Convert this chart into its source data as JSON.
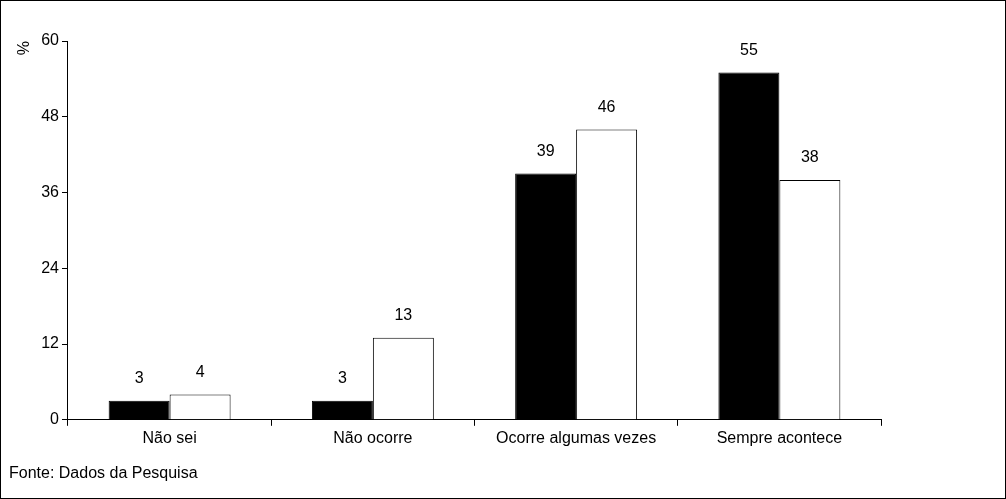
{
  "chart_data": {
    "type": "bar",
    "ylabel": "%",
    "categories": [
      "Não sei",
      "Não ocorre",
      "Ocorre algumas vezes",
      "Sempre acontece"
    ],
    "series": [
      {
        "color": "#000000",
        "values": [
          3,
          3,
          39,
          55
        ]
      },
      {
        "color": "#ffffff",
        "values": [
          4,
          13,
          46,
          38
        ]
      }
    ],
    "ylim": [
      0,
      60
    ],
    "yticks": [
      0,
      12,
      24,
      36,
      48,
      60
    ],
    "grid": false,
    "legend": false,
    "data_labels": true,
    "annotations": [
      "Fonte: Dados da Pesquisa"
    ]
  }
}
